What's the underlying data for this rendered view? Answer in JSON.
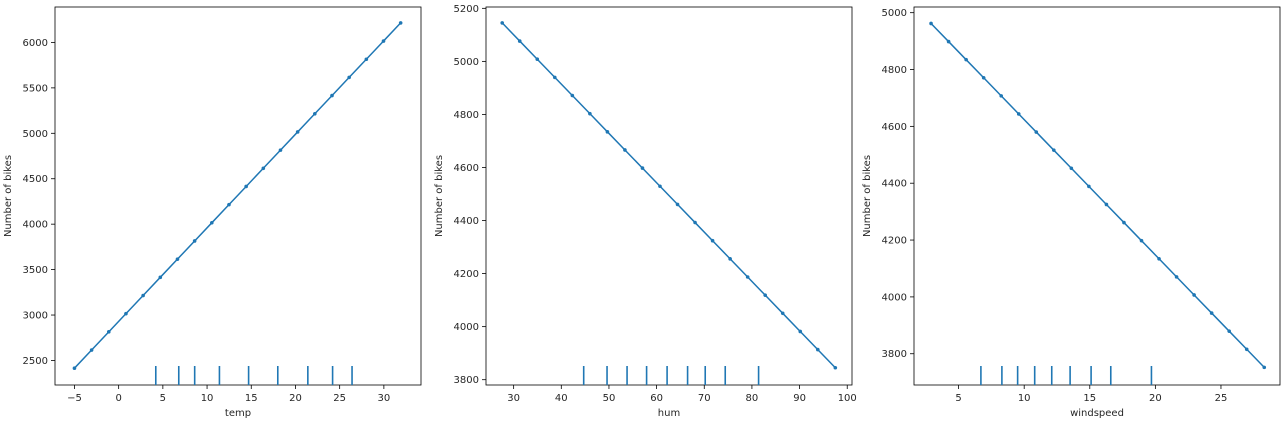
{
  "chart_data": [
    {
      "type": "line",
      "xlabel": "temp",
      "ylabel": "Number of bikes",
      "xlim": [
        -7.2,
        34.2
      ],
      "ylim": [
        2230,
        6390
      ],
      "xticks": [
        -5,
        0,
        5,
        10,
        15,
        20,
        25,
        30
      ],
      "yticks": [
        2500,
        3000,
        3500,
        4000,
        4500,
        5000,
        5500,
        6000
      ],
      "line": {
        "x0": -5,
        "x1": 31.9,
        "y0": 2415,
        "y1": 6215,
        "points": 20,
        "color": "#1f77b4"
      },
      "rug": [
        4.2,
        6.8,
        8.6,
        11.4,
        14.7,
        18.0,
        21.4,
        24.2,
        26.4
      ]
    },
    {
      "type": "line",
      "xlabel": "hum",
      "ylabel": "Number of bikes",
      "xlim": [
        24.2,
        101.0
      ],
      "ylim": [
        3780,
        5205
      ],
      "xticks": [
        30,
        40,
        50,
        60,
        70,
        80,
        90,
        100
      ],
      "yticks": [
        3800,
        4000,
        4200,
        4400,
        4600,
        4800,
        5000,
        5200
      ],
      "line": {
        "x0": 27.6,
        "x1": 97.5,
        "y0": 5145,
        "y1": 3845,
        "points": 20,
        "color": "#1f77b4"
      },
      "rug": [
        44.7,
        49.6,
        53.8,
        57.9,
        62.2,
        66.5,
        70.2,
        74.4,
        81.4
      ]
    },
    {
      "type": "line",
      "xlabel": "windspeed",
      "ylabel": "Number of bikes",
      "xlim": [
        1.6,
        29.5
      ],
      "ylim": [
        3690,
        5020
      ],
      "xticks": [
        5,
        10,
        15,
        20,
        25
      ],
      "yticks": [
        3800,
        4000,
        4200,
        4400,
        4600,
        4800,
        5000
      ],
      "line": {
        "x0": 2.9,
        "x1": 28.3,
        "y0": 4962,
        "y1": 3752,
        "points": 20,
        "color": "#1f77b4"
      },
      "rug": [
        6.7,
        8.3,
        9.5,
        10.8,
        12.1,
        13.5,
        15.1,
        16.6,
        19.7
      ]
    }
  ]
}
